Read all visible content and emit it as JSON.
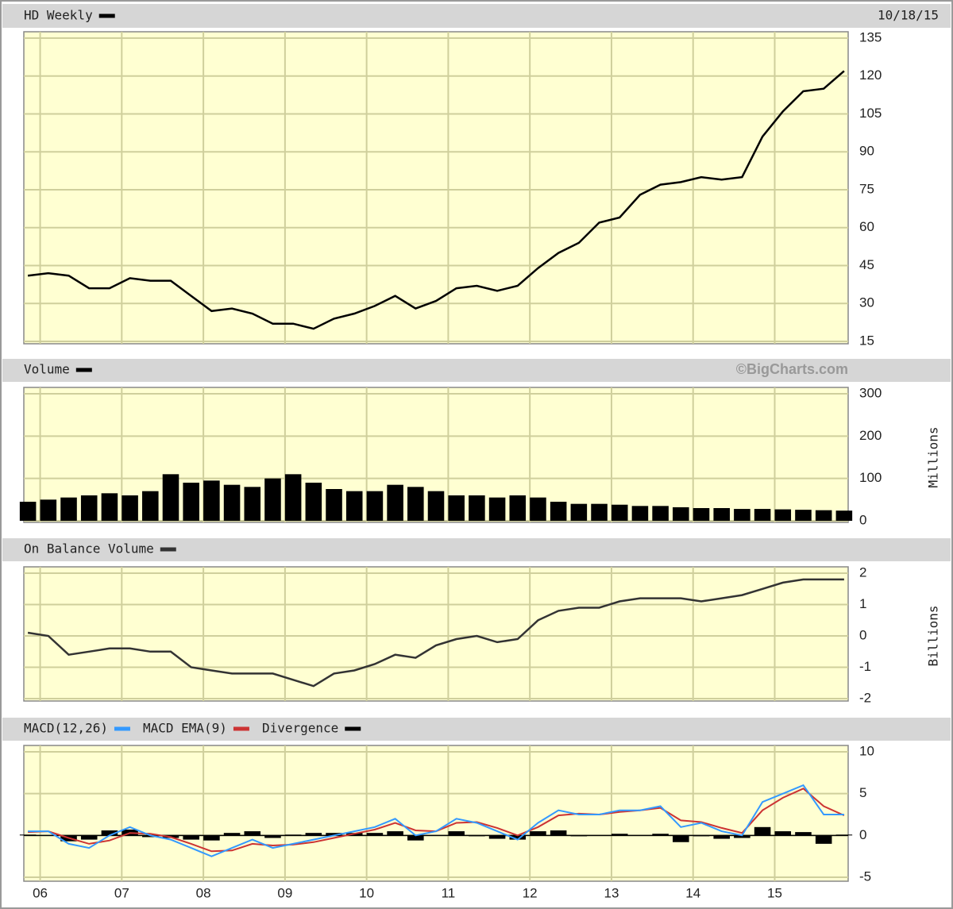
{
  "chart_data": [
    {
      "type": "line",
      "date": "10/18/15",
      "x": [
        2005.85,
        2006.1,
        2006.35,
        2006.6,
        2006.85,
        2007.1,
        2007.35,
        2007.6,
        2007.85,
        2008.1,
        2008.35,
        2008.6,
        2008.85,
        2009.1,
        2009.35,
        2009.6,
        2009.85,
        2010.1,
        2010.35,
        2010.6,
        2010.85,
        2011.1,
        2011.35,
        2011.6,
        2011.85,
        2012.1,
        2012.35,
        2012.6,
        2012.85,
        2013.1,
        2013.35,
        2013.6,
        2013.85,
        2014.1,
        2014.35,
        2014.6,
        2014.85,
        2015.1,
        2015.35,
        2015.6,
        2015.85
      ],
      "xlim": [
        2005.8,
        2015.9
      ],
      "series": [
        {
          "name": "HD Weekly",
          "color": "#000000",
          "values": [
            41,
            42,
            41,
            36,
            36,
            40,
            39,
            39,
            33,
            27,
            28,
            26,
            22,
            22,
            20,
            24,
            26,
            29,
            33,
            28,
            31,
            36,
            37,
            35,
            37,
            44,
            50,
            54,
            62,
            64,
            73,
            77,
            78,
            80,
            79,
            80,
            96,
            106,
            114,
            115,
            122
          ]
        }
      ],
      "ylim": [
        15,
        135
      ],
      "yticks": [
        135,
        120,
        105,
        90,
        75,
        60,
        45,
        30,
        15
      ],
      "grid": true
    },
    {
      "type": "bar",
      "source": "©BigCharts.com",
      "ylabel": "Millions",
      "x": [
        2005.85,
        2006.1,
        2006.35,
        2006.6,
        2006.85,
        2007.1,
        2007.35,
        2007.6,
        2007.85,
        2008.1,
        2008.35,
        2008.6,
        2008.85,
        2009.1,
        2009.35,
        2009.6,
        2009.85,
        2010.1,
        2010.35,
        2010.6,
        2010.85,
        2011.1,
        2011.35,
        2011.6,
        2011.85,
        2012.1,
        2012.35,
        2012.6,
        2012.85,
        2013.1,
        2013.35,
        2013.6,
        2013.85,
        2014.1,
        2014.35,
        2014.6,
        2014.85,
        2015.1,
        2015.35,
        2015.6,
        2015.85
      ],
      "xlim": [
        2005.8,
        2015.9
      ],
      "series": [
        {
          "name": "Volume",
          "color": "#000000",
          "values": [
            45,
            50,
            55,
            60,
            65,
            60,
            70,
            110,
            90,
            95,
            85,
            80,
            100,
            110,
            90,
            75,
            70,
            70,
            85,
            80,
            70,
            60,
            60,
            55,
            60,
            55,
            45,
            40,
            40,
            38,
            35,
            35,
            32,
            30,
            30,
            28,
            28,
            27,
            26,
            25,
            24
          ]
        }
      ],
      "ylim": [
        0,
        300
      ],
      "yticks": [
        300,
        200,
        100,
        0
      ],
      "grid": true
    },
    {
      "type": "line",
      "ylabel": "Billions",
      "x": [
        2005.85,
        2006.1,
        2006.35,
        2006.6,
        2006.85,
        2007.1,
        2007.35,
        2007.6,
        2007.85,
        2008.1,
        2008.35,
        2008.6,
        2008.85,
        2009.1,
        2009.35,
        2009.6,
        2009.85,
        2010.1,
        2010.35,
        2010.6,
        2010.85,
        2011.1,
        2011.35,
        2011.6,
        2011.85,
        2012.1,
        2012.35,
        2012.6,
        2012.85,
        2013.1,
        2013.35,
        2013.6,
        2013.85,
        2014.1,
        2014.35,
        2014.6,
        2014.85,
        2015.1,
        2015.35,
        2015.6,
        2015.85
      ],
      "xlim": [
        2005.8,
        2015.9
      ],
      "series": [
        {
          "name": "On Balance Volume",
          "color": "#333333",
          "values": [
            0.1,
            0.0,
            -0.6,
            -0.5,
            -0.4,
            -0.4,
            -0.5,
            -0.5,
            -1.0,
            -1.1,
            -1.2,
            -1.2,
            -1.2,
            -1.4,
            -1.6,
            -1.2,
            -1.1,
            -0.9,
            -0.6,
            -0.7,
            -0.3,
            -0.1,
            0.0,
            -0.2,
            -0.1,
            0.5,
            0.8,
            0.9,
            0.9,
            1.1,
            1.2,
            1.2,
            1.2,
            1.1,
            1.2,
            1.3,
            1.5,
            1.7,
            1.8,
            1.8,
            1.8
          ]
        }
      ],
      "ylim": [
        -2,
        2
      ],
      "yticks": [
        2,
        1,
        0,
        -1,
        -2
      ],
      "grid": true
    },
    {
      "type": "macd",
      "x": [
        2005.85,
        2006.1,
        2006.35,
        2006.6,
        2006.85,
        2007.1,
        2007.35,
        2007.6,
        2007.85,
        2008.1,
        2008.35,
        2008.6,
        2008.85,
        2009.1,
        2009.35,
        2009.6,
        2009.85,
        2010.1,
        2010.35,
        2010.6,
        2010.85,
        2011.1,
        2011.35,
        2011.6,
        2011.85,
        2012.1,
        2012.35,
        2012.6,
        2012.85,
        2013.1,
        2013.35,
        2013.6,
        2013.85,
        2014.1,
        2014.35,
        2014.6,
        2014.85,
        2015.1,
        2015.35,
        2015.6,
        2015.85
      ],
      "xlim": [
        2005.8,
        2015.9
      ],
      "xticks": [
        {
          "value": 2006,
          "label": "06"
        },
        {
          "value": 2007,
          "label": "07"
        },
        {
          "value": 2008,
          "label": "08"
        },
        {
          "value": 2009,
          "label": "09"
        },
        {
          "value": 2010,
          "label": "10"
        },
        {
          "value": 2011,
          "label": "11"
        },
        {
          "value": 2012,
          "label": "12"
        },
        {
          "value": 2013,
          "label": "13"
        },
        {
          "value": 2014,
          "label": "14"
        },
        {
          "value": 2015,
          "label": "15"
        }
      ],
      "series": [
        {
          "name": "MACD(12,26)",
          "color": "#3399ff",
          "values": [
            0.5,
            0.5,
            -1.0,
            -1.5,
            0.0,
            1.0,
            0.0,
            -0.5,
            -1.5,
            -2.5,
            -1.5,
            -0.5,
            -1.5,
            -1.0,
            -0.5,
            0.0,
            0.5,
            1.0,
            2.0,
            0.0,
            0.5,
            2.0,
            1.5,
            0.5,
            -0.5,
            1.5,
            3.0,
            2.5,
            2.5,
            3.0,
            3.0,
            3.5,
            1.0,
            1.5,
            0.5,
            0.0,
            4.0,
            5.0,
            6.0,
            2.5,
            2.5
          ]
        },
        {
          "name": "MACD EMA(9)",
          "color": "#cc3333",
          "values": [
            0.4,
            0.5,
            -0.3,
            -1.0,
            -0.6,
            0.3,
            0.2,
            -0.2,
            -1.0,
            -1.9,
            -1.8,
            -1.0,
            -1.2,
            -1.1,
            -0.8,
            -0.3,
            0.2,
            0.7,
            1.5,
            0.6,
            0.5,
            1.5,
            1.6,
            0.9,
            0.0,
            1.0,
            2.4,
            2.6,
            2.5,
            2.8,
            3.0,
            3.3,
            1.8,
            1.6,
            0.9,
            0.3,
            3.0,
            4.5,
            5.6,
            3.5,
            2.4
          ]
        },
        {
          "name": "Divergence",
          "color": "#000000",
          "values": [
            0.1,
            0,
            -0.7,
            -0.5,
            0.6,
            0.7,
            -0.2,
            -0.3,
            -0.5,
            -0.6,
            0.3,
            0.5,
            -0.3,
            0.1,
            0.3,
            0.3,
            0.3,
            0.3,
            0.5,
            -0.6,
            0,
            0.5,
            -0.1,
            -0.4,
            -0.5,
            0.5,
            0.6,
            -0.1,
            0,
            0.2,
            0,
            0.2,
            -0.8,
            -0.1,
            -0.4,
            -0.3,
            1.0,
            0.5,
            0.4,
            -1.0,
            0.1
          ]
        }
      ],
      "ylim": [
        -5,
        10
      ],
      "yticks": [
        10,
        5,
        0,
        -5
      ],
      "grid": true
    }
  ]
}
